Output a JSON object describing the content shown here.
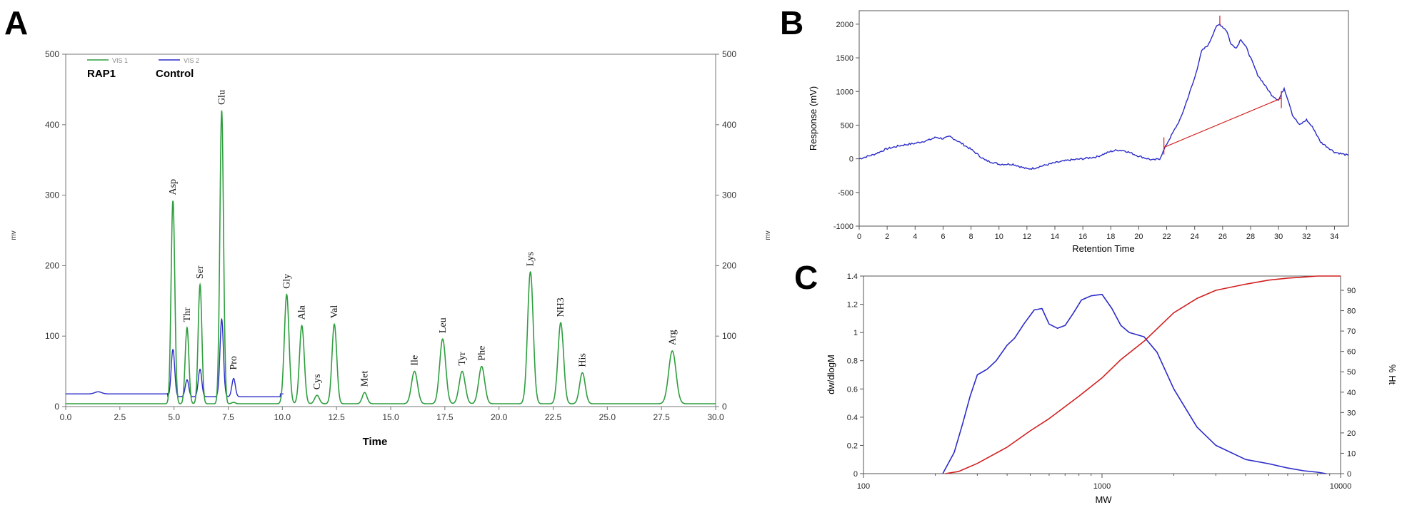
{
  "panels": {
    "a": "A",
    "b": "B",
    "c": "C"
  },
  "colors": {
    "green": "#2e9e3e",
    "blue": "#2b2bc8",
    "red": "#d21f1f",
    "axis": "#555555"
  },
  "chart_data": [
    {
      "panel": "A",
      "type": "line",
      "title": "",
      "xlabel": "Time",
      "ylabel": "mv",
      "ylabel_right": "mv",
      "xlim": [
        0,
        30
      ],
      "ylim": [
        0,
        500
      ],
      "xticks": [
        "0.0",
        "2.5",
        "5.0",
        "7.5",
        "10.0",
        "12.5",
        "15.0",
        "17.5",
        "20.0",
        "22.5",
        "25.0",
        "27.5",
        "30.0"
      ],
      "yticks": [
        "0",
        "100",
        "200",
        "300",
        "400",
        "500"
      ],
      "legend": [
        {
          "series": "VIS 1",
          "name": "RAP1",
          "color": "#2e9e3e"
        },
        {
          "series": "VIS 2",
          "name": "Control",
          "color": "#2b2bc8"
        }
      ],
      "peaks": [
        {
          "label": "Asp",
          "x": 4.95,
          "y": 292,
          "control": 85
        },
        {
          "label": "Thr",
          "x": 5.6,
          "y": 112,
          "control": 42
        },
        {
          "label": "Ser",
          "x": 6.2,
          "y": 173,
          "control": 57
        },
        {
          "label": "Glu",
          "x": 7.2,
          "y": 420,
          "control": 128
        },
        {
          "label": "Pro",
          "x": 7.75,
          "y": 6,
          "control": 44
        },
        {
          "label": "Gly",
          "x": 10.2,
          "y": 159
        },
        {
          "label": "Ala",
          "x": 10.9,
          "y": 115
        },
        {
          "label": "Cys",
          "x": 11.6,
          "y": 16
        },
        {
          "label": "Val",
          "x": 12.4,
          "y": 117
        },
        {
          "label": "Met",
          "x": 13.8,
          "y": 20
        },
        {
          "label": "Ile",
          "x": 16.1,
          "y": 50
        },
        {
          "label": "Leu",
          "x": 17.4,
          "y": 96
        },
        {
          "label": "Tyr",
          "x": 18.3,
          "y": 50
        },
        {
          "label": "Phe",
          "x": 19.2,
          "y": 57
        },
        {
          "label": "Lys",
          "x": 21.45,
          "y": 191
        },
        {
          "label": "NH3",
          "x": 22.85,
          "y": 119
        },
        {
          "label": "His",
          "x": 23.85,
          "y": 48
        },
        {
          "label": "Arg",
          "x": 28,
          "y": 79
        }
      ],
      "control_baseline": 18,
      "rap1_baseline": 4
    },
    {
      "panel": "B",
      "type": "line",
      "xlabel": "Retention Time",
      "ylabel": "Response (mV)",
      "xlim": [
        0,
        35
      ],
      "ylim": [
        -1000,
        2200
      ],
      "xticks": [
        "0",
        "2",
        "4",
        "6",
        "8",
        "10",
        "12",
        "14",
        "16",
        "18",
        "20",
        "22",
        "24",
        "26",
        "28",
        "30",
        "32",
        "34"
      ],
      "yticks": [
        "-1000",
        "-500",
        "0",
        "500",
        "1000",
        "1500",
        "2000"
      ],
      "series": [
        {
          "name": "",
          "color": "#2b2bc8",
          "x": [
            0,
            1,
            2,
            3,
            4,
            5,
            5.5,
            6,
            6.5,
            7,
            8,
            9,
            10,
            11,
            12,
            12.5,
            13,
            14,
            15,
            16,
            17,
            18,
            18.5,
            19,
            20,
            21,
            21.5,
            22,
            23,
            23.5,
            24,
            24.5,
            25,
            25.5,
            25.8,
            26.3,
            26.6,
            27,
            27.3,
            27.7,
            28,
            28.5,
            29,
            29.5,
            30,
            30.4,
            30.8,
            31,
            31.5,
            32,
            32.5,
            33,
            34,
            35
          ],
          "y": [
            0,
            60,
            150,
            200,
            230,
            280,
            320,
            300,
            330,
            270,
            140,
            -20,
            -80,
            -80,
            -150,
            -140,
            -110,
            -60,
            -20,
            0,
            30,
            110,
            130,
            120,
            40,
            -20,
            0,
            220,
            600,
            900,
            1200,
            1600,
            1700,
            1950,
            2000,
            1900,
            1700,
            1650,
            1780,
            1650,
            1500,
            1250,
            1100,
            950,
            870,
            1050,
            800,
            650,
            500,
            580,
            450,
            250,
            100,
            50
          ]
        },
        {
          "name": "",
          "color": "#d21f1f",
          "x": [
            21.8,
            30.2
          ],
          "y": [
            170,
            900
          ]
        }
      ]
    },
    {
      "panel": "C",
      "type": "line",
      "xlabel": "MW",
      "ylabel": "dw/dlogM",
      "ylabel_right": "% Ht",
      "xscale": "log",
      "xlim": [
        100,
        10000
      ],
      "ylim": [
        0,
        1.4
      ],
      "ylim_right": [
        0,
        97
      ],
      "xticks": [
        "100",
        "1000",
        "10000"
      ],
      "yticks": [
        "0",
        "0.2",
        "0.4",
        "0.6",
        "0.8",
        "1",
        "1.2",
        "1.4"
      ],
      "yticks_right": [
        "0",
        "10",
        "20",
        "30",
        "40",
        "50",
        "60",
        "70",
        "80",
        "90"
      ],
      "series": [
        {
          "name": "",
          "color": "#2b2bc8",
          "axis": "left",
          "x": [
            215,
            240,
            260,
            280,
            300,
            330,
            360,
            400,
            430,
            470,
            520,
            560,
            600,
            650,
            700,
            760,
            820,
            900,
            1000,
            1100,
            1200,
            1300,
            1500,
            1700,
            2000,
            2500,
            3000,
            4000,
            5000,
            6000,
            7000,
            8000,
            8700
          ],
          "y": [
            0,
            0.15,
            0.35,
            0.55,
            0.7,
            0.74,
            0.8,
            0.91,
            0.96,
            1.06,
            1.16,
            1.17,
            1.06,
            1.03,
            1.05,
            1.14,
            1.23,
            1.26,
            1.27,
            1.17,
            1.05,
            1.0,
            0.97,
            0.86,
            0.6,
            0.33,
            0.2,
            0.1,
            0.07,
            0.04,
            0.02,
            0.01,
            0.0
          ]
        },
        {
          "name": "",
          "color": "#d21f1f",
          "axis": "right",
          "x": [
            220,
            250,
            300,
            400,
            500,
            600,
            800,
            1000,
            1200,
            1500,
            2000,
            2500,
            3000,
            4000,
            5000,
            6000,
            7000,
            8000,
            9000,
            10000
          ],
          "y": [
            0,
            1,
            5,
            13,
            21,
            27,
            38,
            47,
            56,
            65,
            79,
            86,
            90,
            93,
            95,
            96,
            96.5,
            97,
            97,
            97
          ]
        }
      ]
    }
  ]
}
